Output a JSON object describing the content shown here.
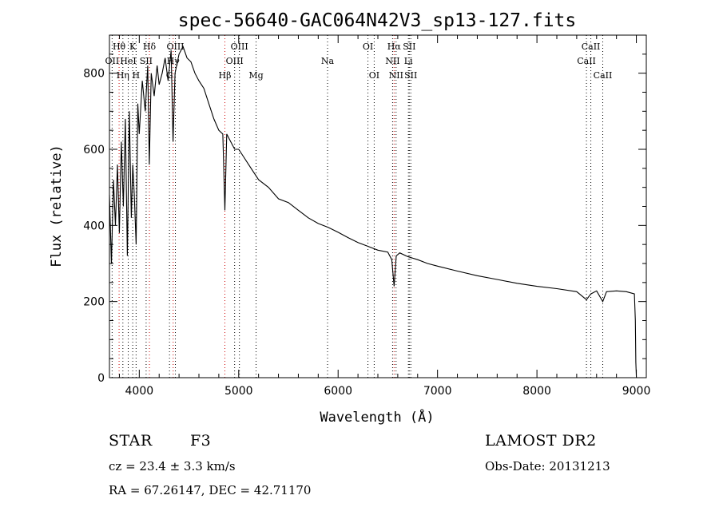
{
  "chart_data": {
    "type": "line",
    "title": "spec-56640-GAC064N42V3_sp13-127.fits",
    "xlabel": "Wavelength (Å)",
    "ylabel": "Flux (relative)",
    "xlim": [
      3700,
      9100
    ],
    "ylim": [
      0,
      900
    ],
    "x_ticks": [
      4000,
      5000,
      6000,
      7000,
      8000,
      9000
    ],
    "x_tick_labels": [
      "4000",
      "5000",
      "6000",
      "7000",
      "8000",
      "9000"
    ],
    "y_ticks": [
      0,
      200,
      400,
      600,
      800
    ],
    "y_tick_labels": [
      "0",
      "200",
      "400",
      "600",
      "800"
    ],
    "series": [
      {
        "name": "spectrum",
        "color": "#000000",
        "x": [
          3700,
          3720,
          3740,
          3760,
          3780,
          3800,
          3820,
          3840,
          3860,
          3880,
          3900,
          3920,
          3935,
          3950,
          3968,
          3985,
          4000,
          4030,
          4060,
          4085,
          4101,
          4120,
          4150,
          4180,
          4200,
          4230,
          4260,
          4290,
          4320,
          4340,
          4360,
          4400,
          4440,
          4480,
          4520,
          4560,
          4600,
          4650,
          4700,
          4750,
          4800,
          4840,
          4861,
          4880,
          4920,
          4960,
          5000,
          5050,
          5100,
          5150,
          5200,
          5300,
          5400,
          5500,
          5600,
          5700,
          5800,
          5900,
          6000,
          6100,
          6200,
          6300,
          6400,
          6500,
          6540,
          6563,
          6585,
          6620,
          6700,
          6800,
          6900,
          7000,
          7200,
          7400,
          7600,
          7800,
          8000,
          8200,
          8400,
          8498,
          8542,
          8600,
          8662,
          8700,
          8800,
          8900,
          8980,
          8990,
          8995,
          9000
        ],
        "y": [
          480,
          300,
          520,
          400,
          560,
          380,
          620,
          450,
          680,
          320,
          700,
          420,
          560,
          480,
          350,
          720,
          640,
          780,
          700,
          820,
          560,
          800,
          740,
          820,
          770,
          800,
          840,
          780,
          860,
          620,
          800,
          850,
          870,
          840,
          830,
          800,
          780,
          760,
          720,
          680,
          650,
          640,
          440,
          640,
          620,
          600,
          600,
          580,
          560,
          540,
          520,
          500,
          470,
          460,
          440,
          420,
          405,
          395,
          382,
          368,
          355,
          345,
          335,
          330,
          310,
          240,
          320,
          328,
          318,
          310,
          300,
          293,
          280,
          268,
          258,
          248,
          240,
          234,
          226,
          205,
          220,
          228,
          200,
          226,
          228,
          226,
          220,
          150,
          40,
          0
        ]
      }
    ],
    "lines": [
      {
        "label": "Hθ",
        "x": 3797,
        "color": "#cc0000",
        "row": 1
      },
      {
        "label": "OII",
        "x": 3727,
        "color": "#000000",
        "row": 2
      },
      {
        "label": "Hη",
        "x": 3835,
        "color": "#000000",
        "row": 3
      },
      {
        "label": "HeI",
        "x": 3889,
        "color": "#000000",
        "row": 2
      },
      {
        "label": "K",
        "x": 3934,
        "color": "#000000",
        "row": 1
      },
      {
        "label": "H",
        "x": 3968,
        "color": "#000000",
        "row": 3
      },
      {
        "label": "SII",
        "x": 4069,
        "color": "#000000",
        "row": 2
      },
      {
        "label": "Hδ",
        "x": 4102,
        "color": "#cc0000",
        "row": 1
      },
      {
        "label": "G",
        "x": 4304,
        "color": "#000000",
        "row": 3
      },
      {
        "label": "Hγ",
        "x": 4341,
        "color": "#cc0000",
        "row": 2
      },
      {
        "label": "OIII",
        "x": 4363,
        "color": "#000000",
        "row": 1
      },
      {
        "label": "Hβ",
        "x": 4861,
        "color": "#cc0000",
        "row": 3
      },
      {
        "label": "OIII",
        "x": 4959,
        "color": "#000000",
        "row": 2
      },
      {
        "label": "OIII",
        "x": 5007,
        "color": "#000000",
        "row": 1
      },
      {
        "label": "Mg",
        "x": 5175,
        "color": "#000000",
        "row": 3
      },
      {
        "label": "Na",
        "x": 5894,
        "color": "#000000",
        "row": 2
      },
      {
        "label": "OI",
        "x": 6300,
        "color": "#000000",
        "row": 1
      },
      {
        "label": "OI",
        "x": 6363,
        "color": "#000000",
        "row": 3
      },
      {
        "label": "NII",
        "x": 6548,
        "color": "#000000",
        "row": 2
      },
      {
        "label": "Hα",
        "x": 6563,
        "color": "#cc0000",
        "row": 1
      },
      {
        "label": "NII",
        "x": 6583,
        "color": "#000000",
        "row": 3
      },
      {
        "label": "Li",
        "x": 6707,
        "color": "#000000",
        "row": 2
      },
      {
        "label": "SII",
        "x": 6716,
        "color": "#000000",
        "row": 1
      },
      {
        "label": "SII",
        "x": 6731,
        "color": "#000000",
        "row": 3
      },
      {
        "label": "CaII",
        "x": 8498,
        "color": "#000000",
        "row": 2
      },
      {
        "label": "CaII",
        "x": 8542,
        "color": "#000000",
        "row": 1
      },
      {
        "label": "CaII",
        "x": 8662,
        "color": "#000000",
        "row": 3
      }
    ]
  },
  "info": {
    "object_class": "STAR",
    "subclass": "F3",
    "survey": "LAMOST DR2",
    "cz": "cz = 23.4 ± 3.3 km/s",
    "obs_date": "Obs-Date: 20131213",
    "coords": "RA =  67.26147, DEC =  42.71170"
  }
}
